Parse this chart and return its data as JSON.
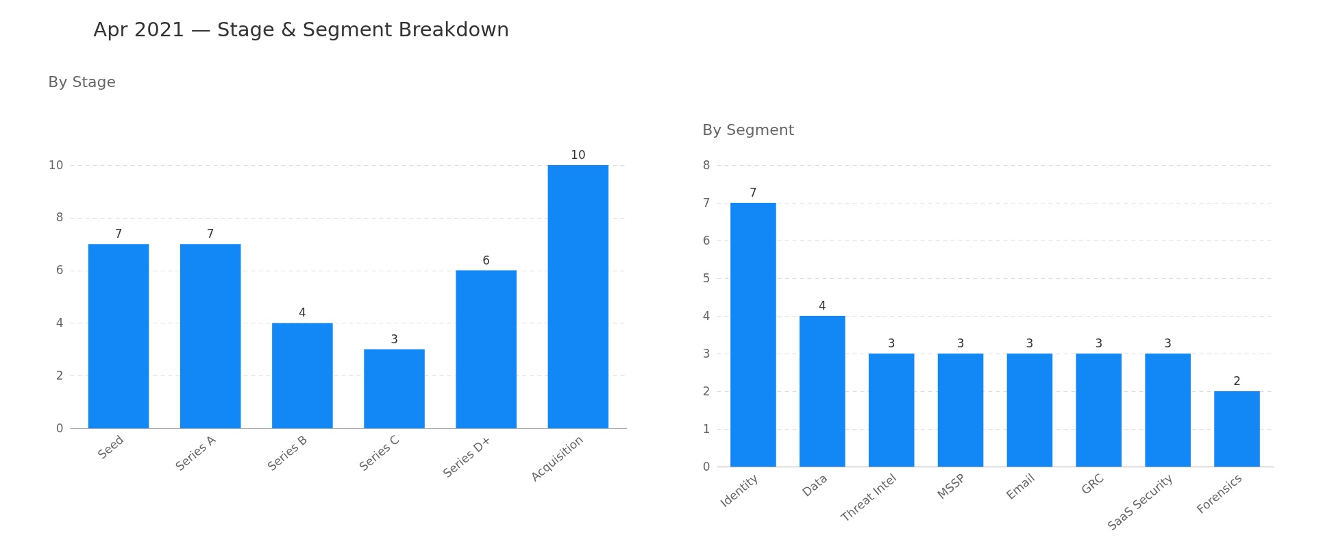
{
  "chart_data": [
    {
      "type": "bar",
      "title": "Apr 2021 — Stage & Segment Breakdown",
      "subtitle": "By Stage",
      "categories": [
        "Seed",
        "Series A",
        "Series B",
        "Series C",
        "Series D+",
        "Acquisition"
      ],
      "values": [
        7,
        7,
        4,
        3,
        6,
        10
      ],
      "color": "#1188f5",
      "ylim": [
        0,
        10
      ],
      "yticks": [
        0,
        2,
        4,
        6,
        8,
        10
      ],
      "grid": "y",
      "data_labels": true
    },
    {
      "type": "bar",
      "subtitle": "By Segment",
      "categories": [
        "Identity",
        "Data",
        "Threat Intel",
        "MSSP",
        "Email",
        "GRC",
        "SaaS Security",
        "Forensics"
      ],
      "values": [
        7,
        4,
        3,
        3,
        3,
        3,
        3,
        2
      ],
      "color": "#1188f5",
      "ylim": [
        0,
        8
      ],
      "yticks": [
        0,
        1,
        2,
        3,
        4,
        5,
        6,
        7,
        8
      ],
      "grid": "y",
      "data_labels": true
    }
  ]
}
